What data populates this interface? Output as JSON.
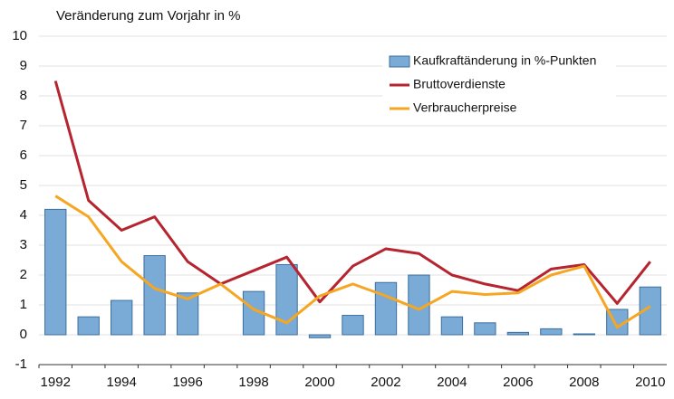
{
  "chart_data": {
    "type": "combo",
    "title": "Veränderung zum Vorjahr in %",
    "categories": [
      "1992",
      null,
      "1994",
      null,
      "1996",
      null,
      "1998",
      null,
      "2000",
      null,
      "2002",
      null,
      "2004",
      null,
      "2006",
      null,
      "2008",
      null,
      "2010"
    ],
    "series": [
      {
        "name": "Kaufkraftänderung in %-Punkten",
        "type": "bar",
        "color": "#7aaad6",
        "values": [
          4.2,
          0.6,
          1.15,
          2.65,
          1.4,
          0,
          1.45,
          2.35,
          -0.1,
          0.65,
          1.75,
          2.0,
          0.6,
          0.4,
          0.08,
          0.2,
          0.03,
          0.85,
          1.6
        ]
      },
      {
        "name": "Bruttoverdienste",
        "type": "line",
        "color": "#b5242f",
        "values": [
          8.5,
          4.5,
          3.5,
          3.95,
          2.45,
          1.7,
          2.15,
          2.6,
          1.1,
          2.3,
          2.88,
          2.72,
          2.0,
          1.7,
          1.48,
          2.2,
          2.35,
          1.05,
          2.45
        ]
      },
      {
        "name": "Verbraucherpreise",
        "type": "line",
        "color": "#f5a623",
        "values": [
          4.65,
          3.95,
          2.45,
          1.55,
          1.2,
          1.7,
          0.85,
          0.4,
          1.3,
          1.7,
          1.3,
          0.85,
          1.45,
          1.35,
          1.4,
          2.0,
          2.3,
          0.25,
          0.95
        ]
      }
    ],
    "ylim": [
      -1,
      10
    ],
    "yticks": [
      -1,
      0,
      1,
      2,
      3,
      4,
      5,
      6,
      7,
      8,
      9,
      10
    ],
    "grid": true,
    "legend": "upper-right"
  }
}
